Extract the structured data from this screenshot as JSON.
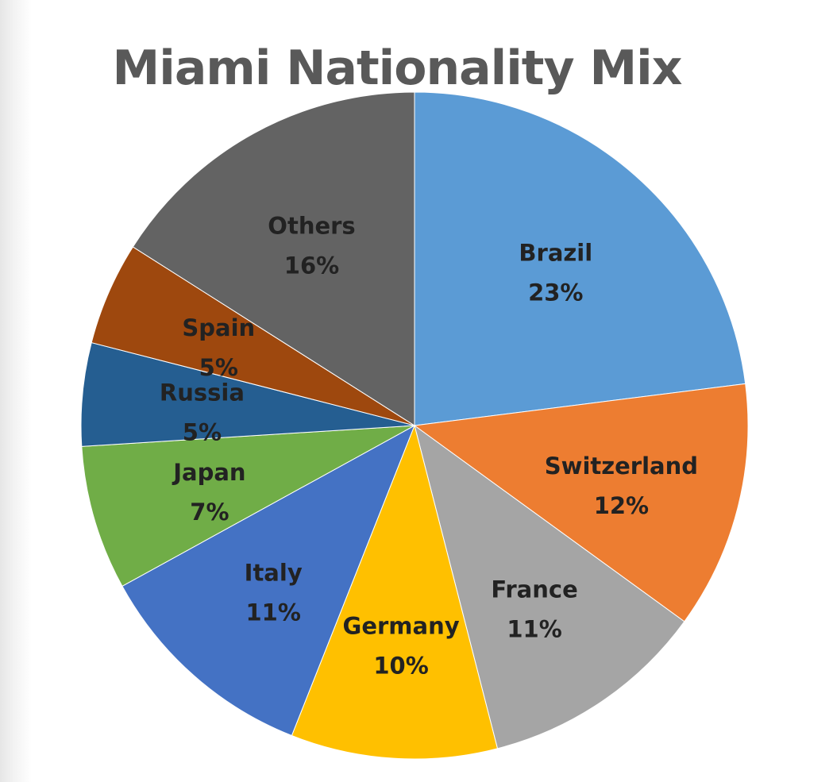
{
  "chart_data": {
    "type": "pie",
    "title": "Miami Nationality Mix",
    "slices": [
      {
        "label": "Brazil",
        "value": 23,
        "display": "23%",
        "color": "#5B9BD5"
      },
      {
        "label": "Switzerland",
        "value": 12,
        "display": "12%",
        "color": "#ED7D31"
      },
      {
        "label": "France",
        "value": 11,
        "display": "11%",
        "color": "#A5A5A5"
      },
      {
        "label": "Germany",
        "value": 10,
        "display": "10%",
        "color": "#FFC000"
      },
      {
        "label": "Italy",
        "value": 11,
        "display": "11%",
        "color": "#4472C4"
      },
      {
        "label": "Japan",
        "value": 7,
        "display": "7%",
        "color": "#70AD47"
      },
      {
        "label": "Russia",
        "value": 5,
        "display": "5%",
        "color": "#255E91"
      },
      {
        "label": "Spain",
        "value": 5,
        "display": "5%",
        "color": "#9E480E"
      },
      {
        "label": "Others",
        "value": 16,
        "display": "16%",
        "color": "#636363"
      }
    ],
    "start": "12 o'clock",
    "direction": "clockwise",
    "data_labels": "category and percentage inside slices",
    "legend": "none"
  }
}
